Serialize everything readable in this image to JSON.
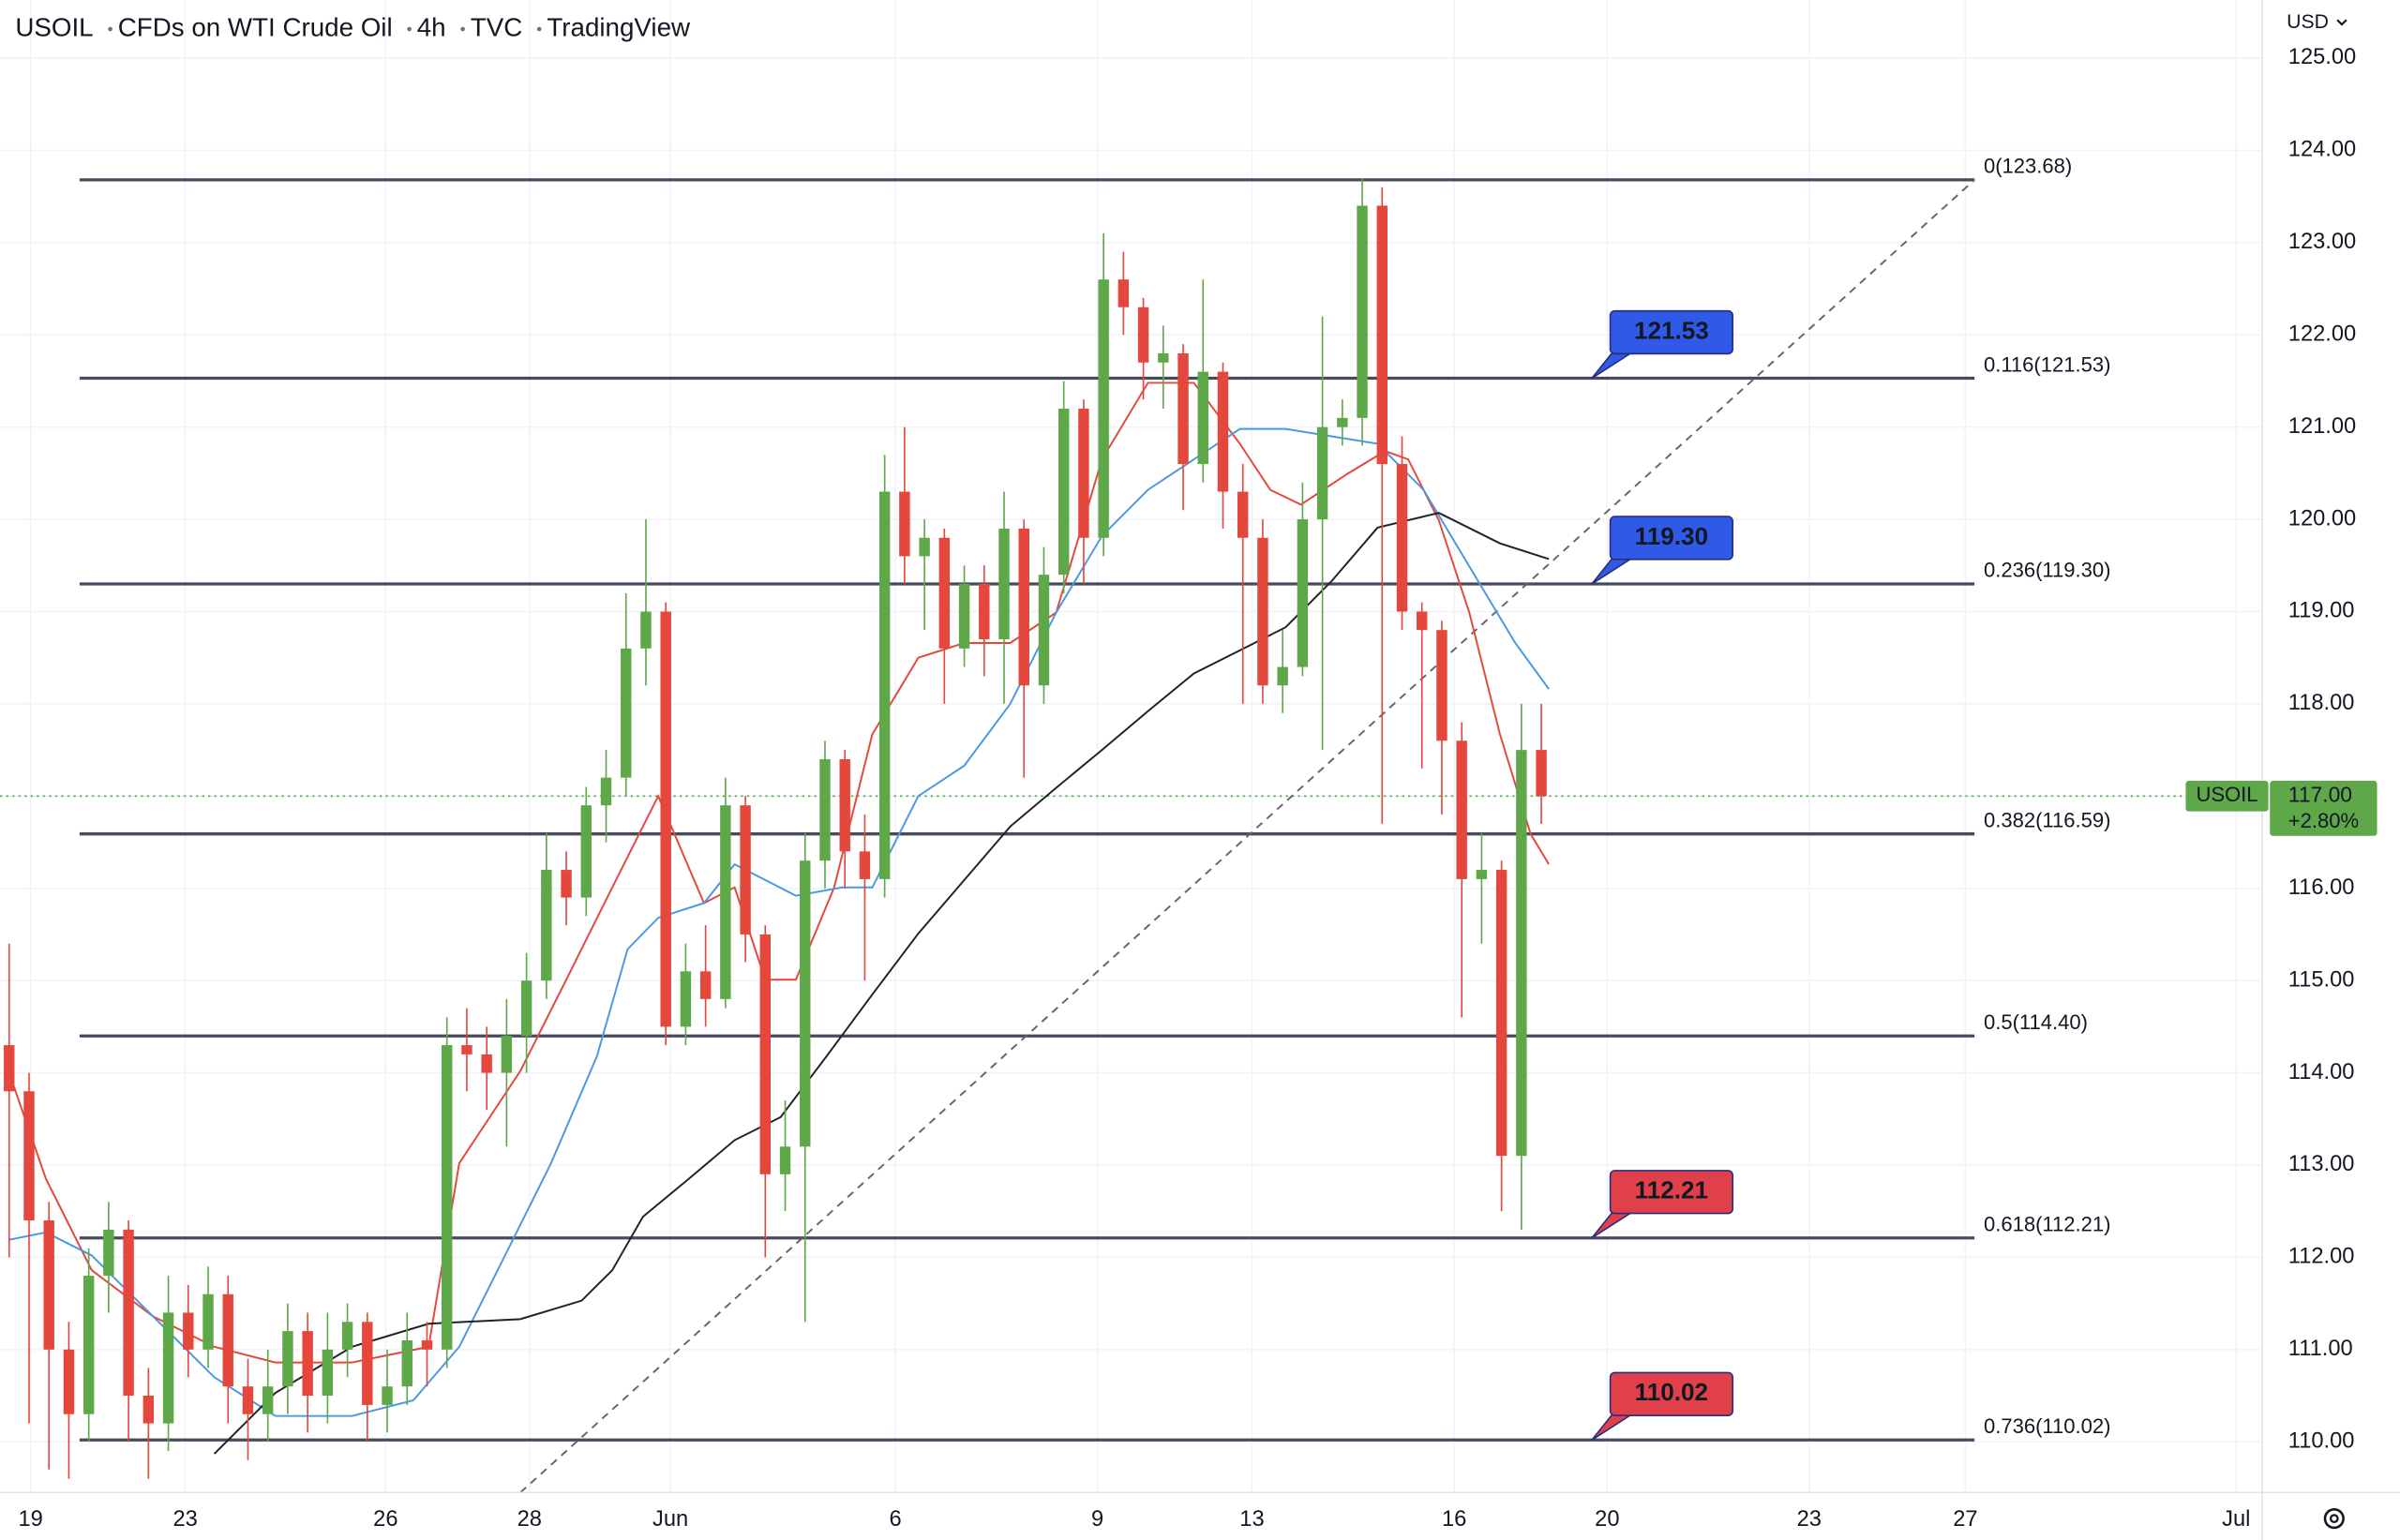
{
  "header": [
    "USOIL",
    "CFDs on WTI Crude Oil",
    "4h",
    "TVC",
    "TradingView"
  ],
  "currency": "USD",
  "chart_data": {
    "type": "candlestick",
    "xlim": [
      -0.46,
      113.23
    ],
    "ylim": [
      109.45,
      125.63
    ],
    "xticks": [
      {
        "value": 1.08,
        "label": "19"
      },
      {
        "value": 8.85,
        "label": "23"
      },
      {
        "value": 18.92,
        "label": "26"
      },
      {
        "value": 26.15,
        "label": "28"
      },
      {
        "value": 33.23,
        "label": "Jun"
      },
      {
        "value": 44.54,
        "label": "6"
      },
      {
        "value": 54.69,
        "label": "9"
      },
      {
        "value": 62.46,
        "label": "13"
      },
      {
        "value": 72.62,
        "label": "16"
      },
      {
        "value": 80.31,
        "label": "20"
      },
      {
        "value": 90.46,
        "label": "23"
      },
      {
        "value": 98.31,
        "label": "27"
      },
      {
        "value": 111.92,
        "label": "Jul"
      }
    ],
    "yticks": [
      {
        "value": 110,
        "label": "110.00"
      },
      {
        "value": 111,
        "label": "111.00"
      },
      {
        "value": 112,
        "label": "112.00"
      },
      {
        "value": 113,
        "label": "113.00"
      },
      {
        "value": 114,
        "label": "114.00"
      },
      {
        "value": 115,
        "label": "115.00"
      },
      {
        "value": 116,
        "label": "116.00"
      },
      {
        "value": 117,
        "label": "117.00"
      },
      {
        "value": 118,
        "label": "118.00"
      },
      {
        "value": 119,
        "label": "119.00"
      },
      {
        "value": 120,
        "label": "120.00"
      },
      {
        "value": 121,
        "label": "121.00"
      },
      {
        "value": 122,
        "label": "122.00"
      },
      {
        "value": 123,
        "label": "123.00"
      },
      {
        "value": 124,
        "label": "124.00"
      },
      {
        "value": 125,
        "label": "125.00"
      }
    ],
    "grid": true,
    "up_color": "#5fa84a",
    "down_color": "#e4473c",
    "open": [
      114.3,
      113.8,
      112.4,
      111.0,
      110.3,
      111.8,
      112.3,
      110.5,
      110.2,
      111.4,
      111.0,
      111.6,
      110.6,
      110.3,
      110.6,
      111.2,
      110.5,
      111.0,
      111.3,
      110.4,
      110.6,
      111.1,
      111.0,
      114.3,
      114.2,
      114.0,
      114.4,
      115.0,
      116.2,
      115.9,
      116.9,
      117.2,
      118.6,
      119.0,
      114.5,
      115.1,
      114.8,
      116.9,
      115.5,
      112.9,
      113.2,
      116.3,
      117.4,
      116.4,
      116.1,
      120.3,
      119.6,
      119.8,
      118.6,
      119.3,
      118.7,
      119.9,
      118.2,
      119.4,
      121.2,
      119.8,
      122.6,
      122.3,
      121.7,
      121.8,
      120.6,
      121.6,
      120.3,
      119.8,
      118.2,
      118.4,
      120.0,
      121.0,
      121.1,
      123.4,
      120.6,
      119.0,
      118.8,
      117.6,
      116.1,
      116.2,
      113.1,
      117.5
    ],
    "high": [
      115.4,
      114.0,
      112.6,
      111.3,
      112.1,
      112.6,
      112.4,
      110.8,
      111.8,
      111.7,
      111.9,
      111.8,
      110.9,
      111.0,
      111.5,
      111.4,
      111.4,
      111.5,
      111.4,
      111.0,
      111.4,
      111.3,
      114.6,
      114.7,
      114.5,
      114.8,
      115.3,
      116.6,
      116.4,
      117.1,
      117.5,
      119.2,
      120.0,
      119.1,
      115.4,
      115.6,
      117.2,
      117.0,
      115.6,
      113.7,
      116.6,
      117.6,
      117.5,
      116.8,
      120.7,
      121.0,
      120.0,
      119.9,
      119.5,
      119.5,
      120.3,
      120.0,
      119.7,
      121.5,
      121.3,
      123.1,
      122.9,
      122.4,
      122.1,
      121.9,
      122.6,
      121.7,
      120.6,
      120.0,
      118.8,
      120.4,
      122.2,
      121.3,
      123.7,
      123.6,
      120.9,
      119.1,
      118.9,
      117.8,
      116.6,
      116.3,
      118.0,
      118.0
    ],
    "low": [
      112.0,
      110.2,
      109.7,
      109.6,
      110.0,
      111.4,
      110.0,
      109.6,
      109.9,
      110.7,
      110.8,
      110.2,
      109.8,
      110.0,
      110.3,
      110.1,
      110.2,
      110.7,
      110.0,
      110.1,
      110.4,
      110.6,
      110.8,
      113.8,
      113.6,
      113.2,
      114.0,
      114.8,
      115.6,
      115.7,
      116.5,
      117.0,
      118.2,
      114.3,
      114.3,
      114.5,
      114.7,
      115.2,
      112.0,
      112.5,
      111.3,
      116.0,
      116.0,
      115.0,
      115.9,
      119.3,
      118.8,
      118.0,
      118.4,
      118.3,
      118.0,
      117.2,
      118.0,
      119.2,
      119.3,
      119.6,
      122.0,
      121.3,
      121.2,
      120.1,
      120.4,
      119.9,
      118.0,
      118.0,
      117.9,
      118.3,
      117.5,
      120.8,
      120.8,
      116.7,
      118.8,
      117.3,
      116.8,
      114.6,
      115.4,
      112.5,
      112.3,
      116.7
    ],
    "close": [
      113.8,
      112.4,
      111.0,
      110.3,
      111.8,
      112.3,
      110.5,
      110.2,
      111.4,
      111.0,
      111.6,
      110.6,
      110.3,
      110.6,
      111.2,
      110.5,
      111.0,
      111.3,
      110.4,
      110.6,
      111.1,
      111.0,
      114.3,
      114.2,
      114.0,
      114.4,
      115.0,
      116.2,
      115.9,
      116.9,
      117.2,
      118.6,
      119.0,
      114.5,
      115.1,
      114.8,
      116.9,
      115.5,
      112.9,
      113.2,
      116.3,
      117.4,
      116.4,
      116.1,
      120.3,
      119.6,
      119.8,
      118.6,
      119.3,
      118.7,
      119.9,
      118.2,
      119.4,
      121.2,
      119.8,
      122.6,
      122.3,
      121.7,
      121.8,
      120.6,
      121.6,
      120.3,
      119.8,
      118.2,
      118.4,
      120.0,
      121.0,
      121.1,
      123.4,
      120.6,
      119.0,
      118.8,
      117.6,
      116.1,
      116.2,
      113.1,
      117.5,
      117.0
    ],
    "lines": [
      {
        "color": "#e4473c",
        "x": [
          0,
          1.85,
          4.15,
          7.23,
          10.31,
          13.38,
          17.23,
          21.08,
          22.62,
          25.69,
          28.0,
          30.31,
          32.62,
          34.92,
          36.46,
          38.0,
          39.54,
          41.46,
          43.38,
          45.69,
          48.0,
          50.31,
          52.62,
          54.92,
          57.23,
          59.54,
          61.85,
          63.38,
          64.92,
          67.23,
          69.15,
          70.31,
          71.85,
          73.38,
          74.92,
          76.46,
          77.38
        ],
        "values": [
          114.0,
          112.85,
          111.86,
          111.36,
          111.03,
          110.86,
          110.86,
          111.03,
          113.02,
          114.02,
          115.01,
          116.01,
          117.0,
          115.84,
          116.01,
          115.01,
          115.01,
          116.01,
          117.67,
          118.5,
          118.66,
          118.66,
          118.99,
          120.65,
          121.48,
          121.48,
          120.82,
          120.32,
          120.16,
          120.49,
          120.74,
          120.65,
          119.99,
          118.99,
          117.67,
          116.59,
          116.26
        ]
      },
      {
        "color": "#4a98e0",
        "x": [
          0,
          1.85,
          4.15,
          7.23,
          10.31,
          13.38,
          17.23,
          20.31,
          22.62,
          24.92,
          27.23,
          29.54,
          31.08,
          32.62,
          34.92,
          36.46,
          38.0,
          39.54,
          41.85,
          43.38,
          45.69,
          48.0,
          50.31,
          52.62,
          54.92,
          57.23,
          59.54,
          61.85,
          64.15,
          66.46,
          68.77,
          71.08,
          73.38,
          75.69,
          77.38
        ],
        "values": [
          112.19,
          112.27,
          112.02,
          111.36,
          110.7,
          110.28,
          110.28,
          110.45,
          111.03,
          112.02,
          113.02,
          114.18,
          115.34,
          115.68,
          115.84,
          116.26,
          116.09,
          115.92,
          116.01,
          116.01,
          117.0,
          117.33,
          118.0,
          118.99,
          119.82,
          120.32,
          120.65,
          120.98,
          120.98,
          120.9,
          120.82,
          120.32,
          119.49,
          118.66,
          118.16
        ]
      },
      {
        "color": "#222222",
        "x": [
          10.31,
          13.38,
          17.23,
          21.08,
          25.69,
          28.77,
          30.31,
          31.85,
          34.15,
          36.46,
          38.77,
          41.08,
          43.38,
          45.69,
          48.0,
          50.31,
          52.62,
          54.92,
          57.23,
          59.54,
          61.85,
          64.15,
          66.46,
          68.77,
          71.85,
          74.92,
          77.38
        ],
        "values": [
          109.87,
          110.53,
          111.03,
          111.28,
          111.33,
          111.53,
          111.86,
          112.44,
          112.85,
          113.27,
          113.52,
          114.18,
          114.85,
          115.51,
          116.09,
          116.67,
          117.09,
          117.5,
          117.92,
          118.33,
          118.58,
          118.83,
          119.33,
          119.91,
          120.07,
          119.74,
          119.57
        ]
      }
    ],
    "trendline": {
      "color": "#666666",
      "x": [
        25.69,
        98.77
      ],
      "values": [
        109.45,
        123.68
      ]
    },
    "fib_color": "#474b5e",
    "fib_range": [
      3.54,
      98.77
    ],
    "fib_levels": [
      {
        "value": 123.68,
        "label": "0(123.68)"
      },
      {
        "value": 121.53,
        "label": "0.116(121.53)"
      },
      {
        "value": 119.3,
        "label": "0.236(119.30)"
      },
      {
        "value": 116.59,
        "label": "0.382(116.59)"
      },
      {
        "value": 114.4,
        "label": "0.5(114.40)"
      },
      {
        "value": 112.21,
        "label": "0.618(112.21)"
      },
      {
        "value": 110.02,
        "label": "0.736(110.02)"
      }
    ],
    "callout_x": 79.54,
    "callouts": [
      {
        "value": 121.53,
        "label": "121.53",
        "color": "#2f5ae8"
      },
      {
        "value": 119.3,
        "label": "119.30",
        "color": "#2f5ae8"
      },
      {
        "value": 112.21,
        "label": "112.21",
        "color": "#e0404a"
      },
      {
        "value": 110.02,
        "label": "110.02",
        "color": "#e0404a"
      }
    ],
    "last_price": {
      "value": 117.0,
      "label": "117.00",
      "change": "+2.80%",
      "symbol": "USOIL",
      "color": "#5fa84a"
    }
  }
}
